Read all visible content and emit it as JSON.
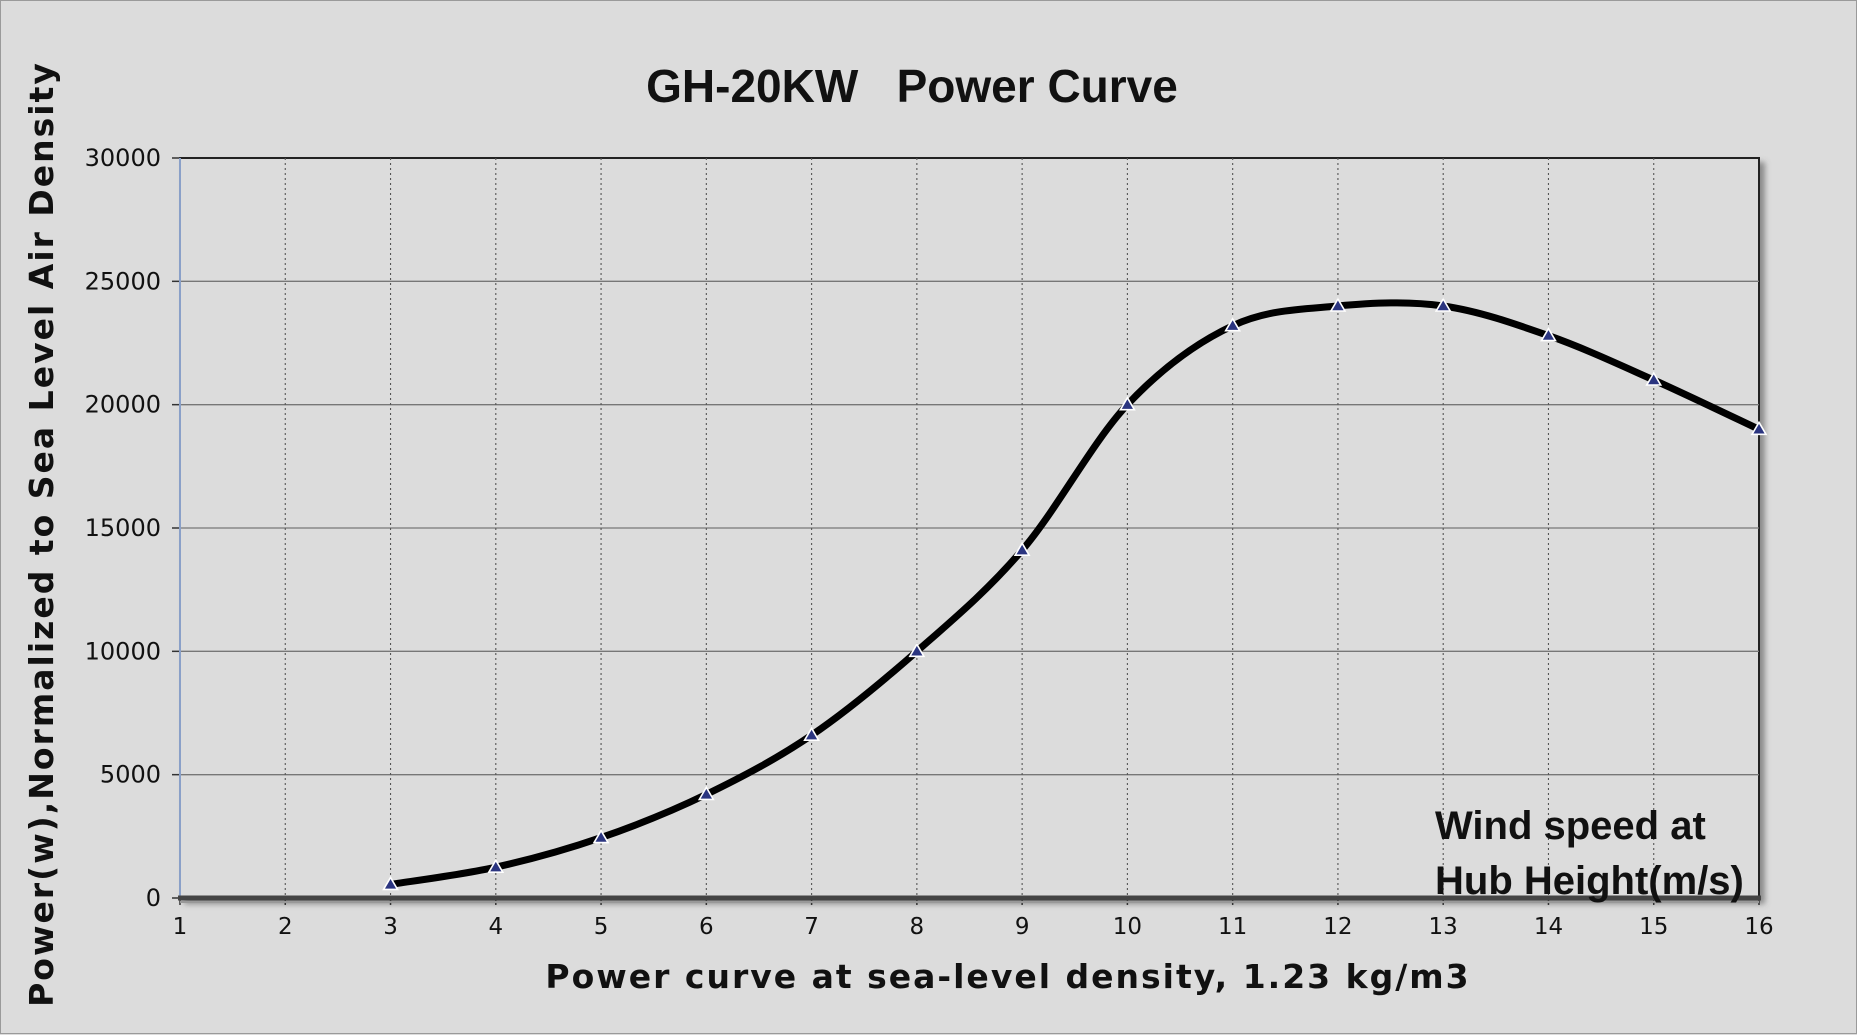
{
  "chart_data": {
    "type": "line",
    "title": "GH-20KW   Power Curve",
    "xlabel": "Power curve at sea-level density, 1.23 kg/m3",
    "ylabel": "Power(w),Normalized to Sea Level Air Density",
    "annotation": [
      "Wind speed at",
      "Hub Height(m/s)"
    ],
    "xlim": [
      1,
      16
    ],
    "ylim": [
      0,
      30000
    ],
    "x_ticks": [
      "1",
      "2",
      "3",
      "4",
      "5",
      "6",
      "7",
      "8",
      "9",
      "10",
      "11",
      "12",
      "13",
      "14",
      "15",
      "16"
    ],
    "y_ticks": [
      "0",
      "5000",
      "10000",
      "15000",
      "20000",
      "25000",
      "30000"
    ],
    "grid": true,
    "legend": "none",
    "series": [
      {
        "color": "#000000",
        "marker": "triangle",
        "x": [
          3,
          4,
          5,
          6,
          7,
          8,
          9,
          10,
          11,
          12,
          13,
          14,
          15,
          16
        ],
        "y": [
          550,
          1250,
          2450,
          4200,
          6600,
          10000,
          14100,
          20000,
          23200,
          24000,
          24000,
          22800,
          21000,
          19000
        ]
      }
    ]
  }
}
